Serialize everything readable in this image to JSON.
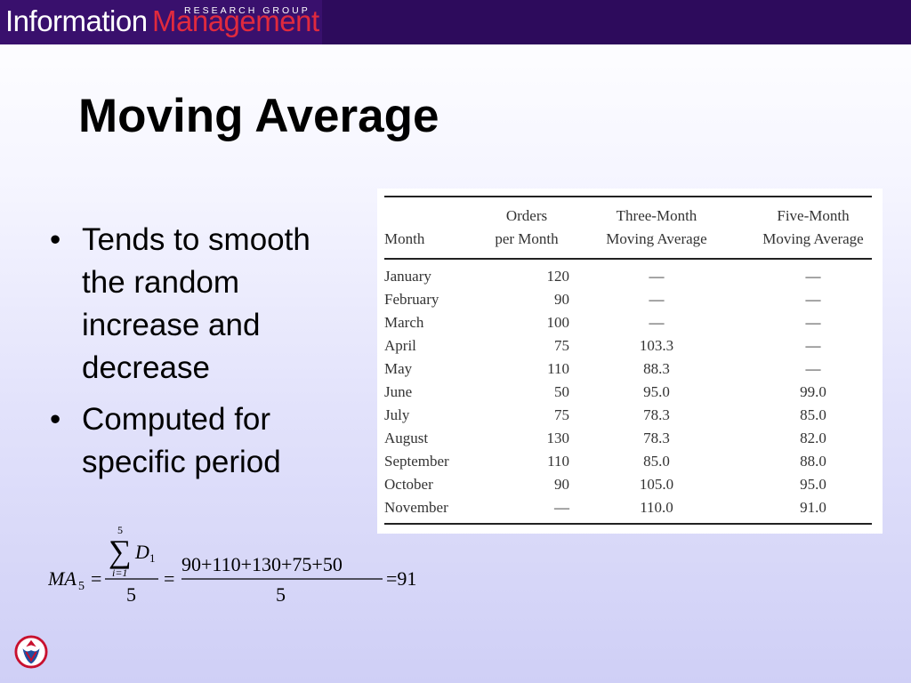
{
  "header": {
    "brand_information": "Information",
    "brand_management": "Management",
    "brand_subtitle": "RESEARCH GROUP"
  },
  "slide": {
    "title": "Moving Average",
    "bullets": [
      {
        "dot": "•",
        "text": "Tends to smooth the random increase and decrease"
      },
      {
        "dot": "•",
        "text": "Computed for specific period"
      }
    ]
  },
  "table": {
    "headers": {
      "month": "Month",
      "orders_line1": "Orders",
      "orders_line2": "per Month",
      "three_line1": "Three-Month",
      "three_line2": "Moving Average",
      "five_line1": "Five-Month",
      "five_line2": "Moving Average"
    },
    "rows": [
      {
        "month": "January",
        "orders": "120",
        "three": "—",
        "five": "—"
      },
      {
        "month": "February",
        "orders": "90",
        "three": "—",
        "five": "—"
      },
      {
        "month": "March",
        "orders": "100",
        "three": "—",
        "five": "—"
      },
      {
        "month": "April",
        "orders": "75",
        "three": "103.3",
        "five": "—"
      },
      {
        "month": "May",
        "orders": "110",
        "three": "88.3",
        "five": "—"
      },
      {
        "month": "June",
        "orders": "50",
        "three": "95.0",
        "five": "99.0"
      },
      {
        "month": "July",
        "orders": "75",
        "three": "78.3",
        "five": "85.0"
      },
      {
        "month": "August",
        "orders": "130",
        "three": "78.3",
        "five": "82.0"
      },
      {
        "month": "September",
        "orders": "110",
        "three": "85.0",
        "five": "88.0"
      },
      {
        "month": "October",
        "orders": "90",
        "three": "105.0",
        "five": "95.0"
      },
      {
        "month": "November",
        "orders": "—",
        "three": "110.0",
        "five": "91.0"
      }
    ]
  },
  "formula": {
    "lhs_ma": "MA",
    "lhs_sub": "5",
    "eq1": "=",
    "sum_upper": "5",
    "sum_symbol": "∑",
    "sum_lower": "i=1",
    "sum_var": "D",
    "sum_var_sub": "1",
    "den1": "5",
    "eq2": "=",
    "numerator": "90+110+130+75+50",
    "den2": "5",
    "result": "=91"
  },
  "logo": {
    "icon": "university-seal-icon",
    "colors": [
      "#c8102e",
      "#1f4fa0"
    ]
  }
}
